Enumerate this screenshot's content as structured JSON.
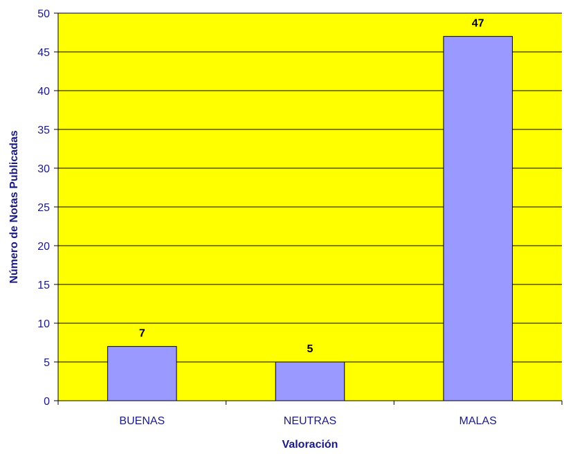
{
  "chart_data": {
    "type": "bar",
    "title": "",
    "xlabel": "Valoración",
    "ylabel": "Número de Notas Publicadas",
    "categories": [
      "BUENAS",
      "NEUTRAS",
      "MALAS"
    ],
    "values": [
      7,
      5,
      47
    ],
    "data_labels": [
      "7",
      "5",
      "47"
    ],
    "ylim": [
      0,
      50
    ],
    "yticks": [
      0,
      5,
      10,
      15,
      20,
      25,
      30,
      35,
      40,
      45,
      50
    ],
    "ytick_labels": [
      "0",
      "5",
      "10",
      "15",
      "20",
      "25",
      "30",
      "35",
      "40",
      "45",
      "50"
    ],
    "grid": true,
    "legend": "none",
    "colors": {
      "plot_background": "#ffff00",
      "bar_fill": "#9999ff",
      "bar_stroke": "#000000",
      "gridline": "#000000",
      "text": "#1a1a80"
    }
  }
}
